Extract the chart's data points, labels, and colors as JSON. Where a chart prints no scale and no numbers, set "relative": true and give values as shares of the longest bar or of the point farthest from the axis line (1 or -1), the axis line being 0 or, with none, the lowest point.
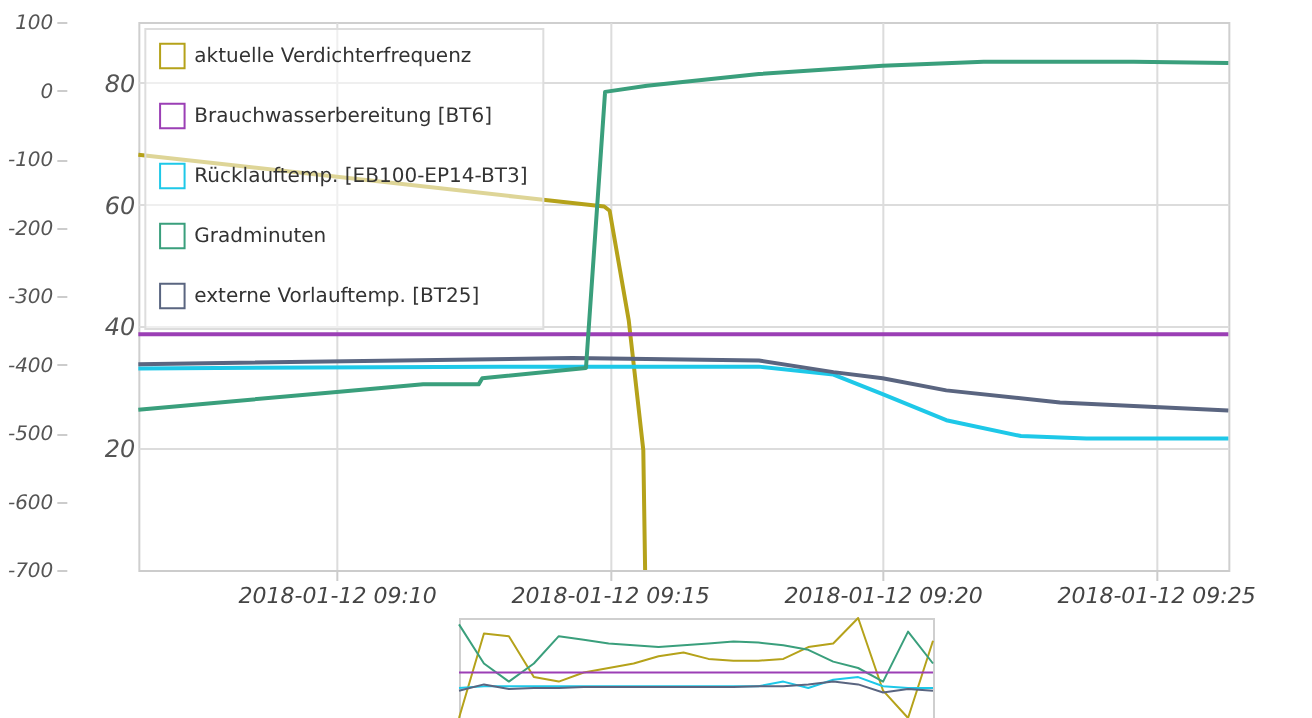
{
  "chart_data": [
    {
      "type": "line",
      "xlim": [
        "2018-01-12T09:06:22",
        "2018-01-12T09:26:20"
      ],
      "xticks": [
        {
          "value": "2018-01-12T09:10",
          "label": "2018-01-12 09:10"
        },
        {
          "value": "2018-01-12T09:15",
          "label": "2018-01-12 09:15"
        },
        {
          "value": "2018-01-12T09:20",
          "label": "2018-01-12 09:20"
        },
        {
          "value": "2018-01-12T09:25",
          "label": "2018-01-12 09:25"
        }
      ],
      "ylim": [
        0,
        90
      ],
      "yticks": [
        20,
        40,
        60,
        80
      ],
      "y2lim": [
        -700,
        100
      ],
      "y2ticks": [
        100,
        0,
        -100,
        -200,
        -300,
        -400,
        -500,
        -600,
        -700
      ],
      "grid": true,
      "legend": "top left",
      "tick_labels": "xy",
      "series": [
        {
          "name": "aktuelle Verdichterfrequenz",
          "color": "#b5a21a",
          "x": [
            "2018-01-12T09:06:22",
            "2018-01-12T09:13:17",
            "2018-01-12T09:14:54",
            "2018-01-12T09:15:00",
            "2018-01-12T09:15:21",
            "2018-01-12T09:15:37",
            "2018-01-12T09:15:39"
          ],
          "values": [
            68.2,
            61.3,
            59.7,
            59,
            41,
            19.7,
            0
          ]
        },
        {
          "name": "Brauchwasserbereitung [BT6]",
          "color": "#9b3fb5",
          "x": [
            "2018-01-12T09:06:22",
            "2018-01-12T09:26:20"
          ],
          "values": [
            38.7,
            38.7
          ]
        },
        {
          "name": "Rücklauftemp. [EB100-EP14-BT3]",
          "color": "#1ec8e8",
          "x": [
            "2018-01-12T09:06:22",
            "2018-01-12T09:13:00",
            "2018-01-12T09:17:44",
            "2018-01-12T09:19:06",
            "2018-01-12T09:20:00",
            "2018-01-12T09:21:10",
            "2018-01-12T09:22:32",
            "2018-01-12T09:23:44",
            "2018-01-12T09:26:20"
          ],
          "values": [
            33.1,
            33.4,
            33.4,
            32.1,
            28.9,
            24.6,
            22,
            21.6,
            21.6
          ]
        },
        {
          "name": "Gradminuten",
          "color": "#3a9f7c",
          "axis": "y2",
          "x": [
            "2018-01-12T09:06:22",
            "2018-01-12T09:10:00",
            "2018-01-12T09:11:35",
            "2018-01-12T09:12:36",
            "2018-01-12T09:12:40",
            "2018-01-12T09:14:34",
            "2018-01-12T09:14:55",
            "2018-01-12T09:15:41",
            "2018-01-12T09:17:44",
            "2018-01-12T09:20:00",
            "2018-01-12T09:21:51",
            "2018-01-12T09:24:36",
            "2018-01-12T09:26:20"
          ],
          "values": [
            -466,
            -440,
            -429,
            -429,
            -420,
            -405,
            -2,
            7,
            24,
            36,
            42,
            42,
            40
          ]
        },
        {
          "name": "externe Vorlauftemp. [BT25]",
          "color": "#5a6580",
          "x": [
            "2018-01-12T09:06:22",
            "2018-01-12T09:14:19",
            "2018-01-12T09:17:44",
            "2018-01-12T09:19:06",
            "2018-01-12T09:20:00",
            "2018-01-12T09:21:10",
            "2018-01-12T09:23:15",
            "2018-01-12T09:26:20"
          ],
          "values": [
            33.8,
            34.8,
            34.4,
            32.5,
            31.5,
            29.5,
            27.5,
            26.2
          ]
        }
      ]
    },
    {
      "type": "line",
      "relative": true,
      "tick_labels": false,
      "legend": false,
      "categories": [
        null,
        null,
        null,
        null,
        null,
        null,
        null,
        null,
        null,
        null,
        null,
        null,
        null,
        null,
        null,
        null,
        null,
        null,
        null,
        null
      ],
      "series": [
        {
          "color": "#b5a21a",
          "values": [
            0,
            0.845,
            0.818,
            0.409,
            0.364,
            0.455,
            0.5,
            0.545,
            0.618,
            0.655,
            0.591,
            0.573,
            0.573,
            0.591,
            0.709,
            0.745,
            1,
            0.273,
            0,
            0.773
          ]
        },
        {
          "color": "#3a9f7c",
          "values": [
            0.936,
            0.545,
            0.364,
            0.545,
            0.818,
            0.782,
            0.745,
            0.727,
            0.709,
            0.727,
            0.745,
            0.764,
            0.755,
            0.727,
            0.682,
            0.564,
            0.5,
            0.364,
            0.864,
            0.545
          ]
        },
        {
          "color": "#9b3fb5",
          "values": [
            0.455,
            0.455,
            0.455,
            0.455,
            0.455,
            0.455,
            0.455,
            0.455,
            0.455,
            0.455,
            0.455,
            0.455,
            0.455,
            0.455,
            0.455,
            0.455,
            0.455,
            0.455,
            0.455,
            0.455
          ]
        },
        {
          "color": "#1ec8e8",
          "values": [
            0.3,
            0.318,
            0.318,
            0.318,
            0.318,
            0.318,
            0.318,
            0.318,
            0.318,
            0.318,
            0.318,
            0.318,
            0.318,
            0.364,
            0.3,
            0.382,
            0.409,
            0.318,
            0.3,
            0.3
          ]
        },
        {
          "color": "#5a6580",
          "values": [
            0.273,
            0.336,
            0.291,
            0.3,
            0.3,
            0.309,
            0.309,
            0.309,
            0.309,
            0.309,
            0.309,
            0.309,
            0.318,
            0.318,
            0.336,
            0.364,
            0.336,
            0.255,
            0.291,
            0.273
          ]
        }
      ]
    }
  ]
}
